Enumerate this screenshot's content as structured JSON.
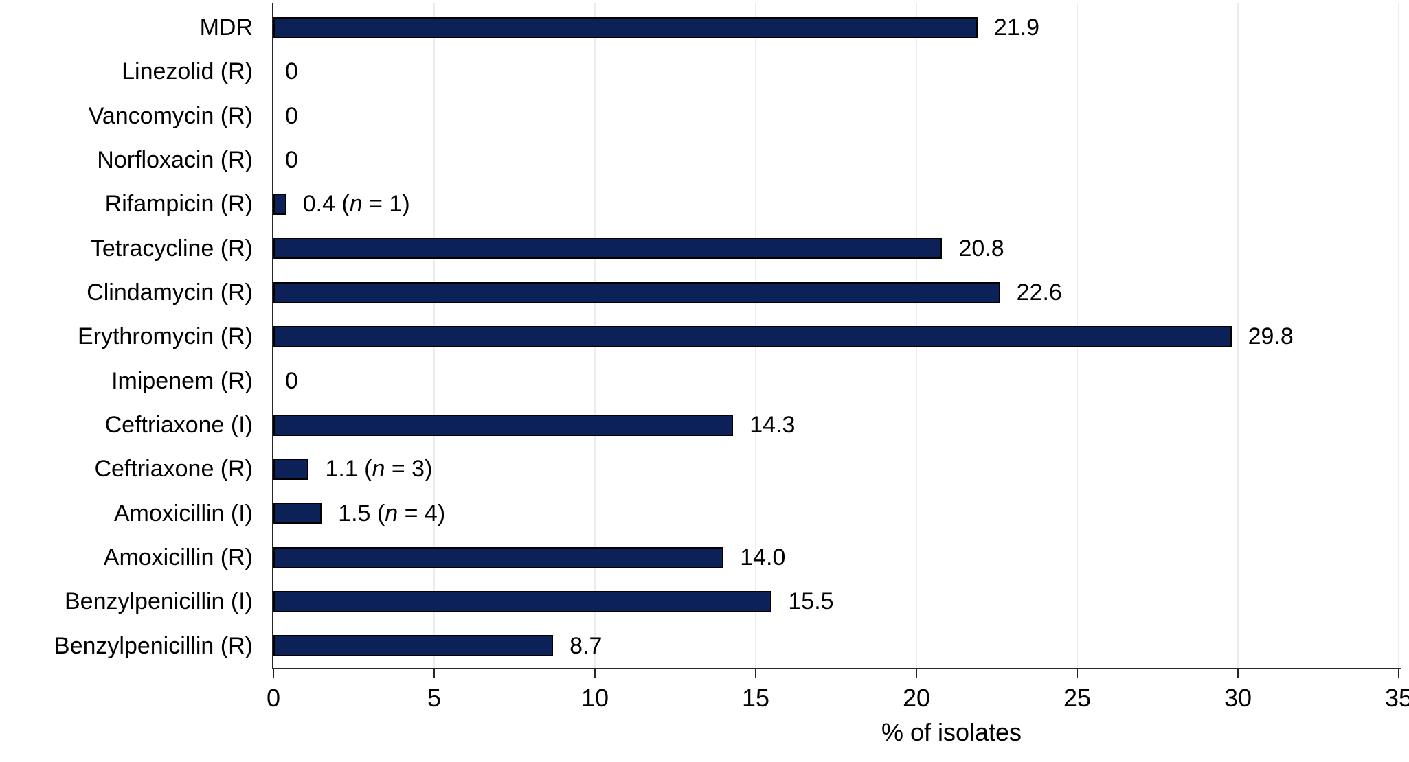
{
  "chart_data": {
    "type": "bar",
    "orientation": "horizontal",
    "title": "",
    "xlabel": "% of isolates",
    "ylabel": "",
    "xlim": [
      0,
      35
    ],
    "x_ticks": [
      0,
      5,
      10,
      15,
      20,
      25,
      30,
      35
    ],
    "grid": "vertical-light-gray-at-ticks",
    "legend": "none",
    "bar_color": "#0b2158",
    "bar_border_color": "#000000",
    "gridline_color": "#ececec",
    "axis_color": "#262626",
    "text_color": "#000000",
    "categories": [
      "MDR",
      "Linezolid (R)",
      "Vancomycin (R)",
      "Norfloxacin (R)",
      "Rifampicin (R)",
      "Tetracycline (R)",
      "Clindamycin (R)",
      "Erythromycin (R)",
      "Imipenem (R)",
      "Ceftriaxone (I)",
      "Ceftriaxone (R)",
      "Amoxicillin (I)",
      "Amoxicillin (R)",
      "Benzylpenicillin (I)",
      "Benzylpenicillin (R)"
    ],
    "values": [
      21.9,
      0,
      0,
      0,
      0.4,
      20.8,
      22.6,
      29.8,
      0,
      14.3,
      1.1,
      1.5,
      14.0,
      15.5,
      8.7
    ],
    "rows": [
      {
        "category": "MDR",
        "value": 21.9,
        "value_label": "21.9",
        "n": null
      },
      {
        "category": "Linezolid (R)",
        "value": 0,
        "value_label": "0",
        "n": null
      },
      {
        "category": "Vancomycin (R)",
        "value": 0,
        "value_label": "0",
        "n": null
      },
      {
        "category": "Norfloxacin (R)",
        "value": 0,
        "value_label": "0",
        "n": null
      },
      {
        "category": "Rifampicin (R)",
        "value": 0.4,
        "value_label": "0.4",
        "n": 1
      },
      {
        "category": "Tetracycline (R)",
        "value": 20.8,
        "value_label": "20.8",
        "n": null
      },
      {
        "category": "Clindamycin (R)",
        "value": 22.6,
        "value_label": "22.6",
        "n": null
      },
      {
        "category": "Erythromycin (R)",
        "value": 29.8,
        "value_label": "29.8",
        "n": null
      },
      {
        "category": "Imipenem (R)",
        "value": 0,
        "value_label": "0",
        "n": null
      },
      {
        "category": "Ceftriaxone (I)",
        "value": 14.3,
        "value_label": "14.3",
        "n": null
      },
      {
        "category": "Ceftriaxone (R)",
        "value": 1.1,
        "value_label": "1.1",
        "n": 3
      },
      {
        "category": "Amoxicillin (I)",
        "value": 1.5,
        "value_label": "1.5",
        "n": 4
      },
      {
        "category": "Amoxicillin (R)",
        "value": 14.0,
        "value_label": "14.0",
        "n": null
      },
      {
        "category": "Benzylpenicillin (I)",
        "value": 15.5,
        "value_label": "15.5",
        "n": null
      },
      {
        "category": "Benzylpenicillin (R)",
        "value": 8.7,
        "value_label": "8.7",
        "n": null
      }
    ],
    "n_variable_symbol": "n"
  }
}
